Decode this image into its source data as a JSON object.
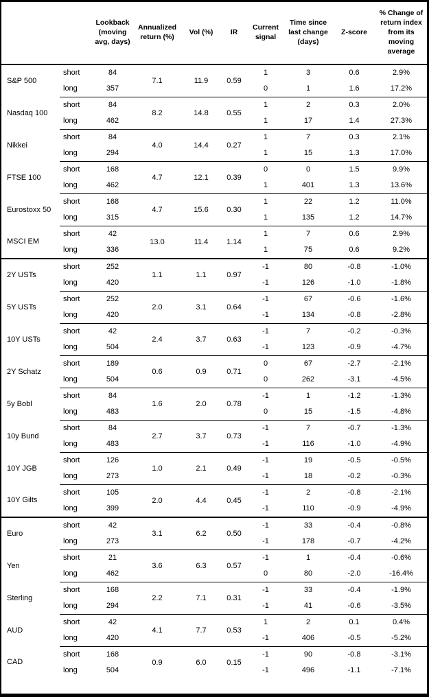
{
  "colors": {
    "border": "#000000",
    "text": "#000000",
    "background": "#ffffff"
  },
  "table": {
    "row_type_labels": {
      "short": "short",
      "long": "long"
    },
    "columns": [
      {
        "key": "instrument",
        "label": ""
      },
      {
        "key": "horizon",
        "label": ""
      },
      {
        "key": "lookback",
        "label": "Lookback (moving avg, days)"
      },
      {
        "key": "annualized",
        "label": "Annualized return (%)"
      },
      {
        "key": "vol",
        "label": "Vol (%)"
      },
      {
        "key": "ir",
        "label": "IR"
      },
      {
        "key": "signal",
        "label": "Current signal"
      },
      {
        "key": "time",
        "label": "Time since last change (days)"
      },
      {
        "key": "zscore",
        "label": "Z-score"
      },
      {
        "key": "pct_change",
        "label": "% Change of return index from its moving average"
      }
    ],
    "groups": [
      {
        "name": "S&P 500",
        "section_start": false,
        "lookback_short": "84",
        "lookback_long": "357",
        "annualized": "7.1",
        "vol": "11.9",
        "ir": "0.59",
        "signal_short": "1",
        "signal_long": "0",
        "time_short": "3",
        "time_long": "1",
        "zscore_short": "0.6",
        "zscore_long": "1.6",
        "pct_short": "2.9%",
        "pct_long": "17.2%"
      },
      {
        "name": "Nasdaq 100",
        "section_start": false,
        "lookback_short": "84",
        "lookback_long": "462",
        "annualized": "8.2",
        "vol": "14.8",
        "ir": "0.55",
        "signal_short": "1",
        "signal_long": "1",
        "time_short": "2",
        "time_long": "17",
        "zscore_short": "0.3",
        "zscore_long": "1.4",
        "pct_short": "2.0%",
        "pct_long": "27.3%"
      },
      {
        "name": "Nikkei",
        "section_start": false,
        "lookback_short": "84",
        "lookback_long": "294",
        "annualized": "4.0",
        "vol": "14.4",
        "ir": "0.27",
        "signal_short": "1",
        "signal_long": "1",
        "time_short": "7",
        "time_long": "15",
        "zscore_short": "0.3",
        "zscore_long": "1.3",
        "pct_short": "2.1%",
        "pct_long": "17.0%"
      },
      {
        "name": "FTSE 100",
        "section_start": false,
        "lookback_short": "168",
        "lookback_long": "462",
        "annualized": "4.7",
        "vol": "12.1",
        "ir": "0.39",
        "signal_short": "0",
        "signal_long": "1",
        "time_short": "0",
        "time_long": "401",
        "zscore_short": "1.5",
        "zscore_long": "1.3",
        "pct_short": "9.9%",
        "pct_long": "13.6%"
      },
      {
        "name": "Eurostoxx 50",
        "section_start": false,
        "lookback_short": "168",
        "lookback_long": "315",
        "annualized": "4.7",
        "vol": "15.6",
        "ir": "0.30",
        "signal_short": "1",
        "signal_long": "1",
        "time_short": "22",
        "time_long": "135",
        "zscore_short": "1.2",
        "zscore_long": "1.2",
        "pct_short": "11.0%",
        "pct_long": "14.7%"
      },
      {
        "name": "MSCI EM",
        "section_start": false,
        "lookback_short": "42",
        "lookback_long": "336",
        "annualized": "13.0",
        "vol": "11.4",
        "ir": "1.14",
        "signal_short": "1",
        "signal_long": "1",
        "time_short": "7",
        "time_long": "75",
        "zscore_short": "0.6",
        "zscore_long": "0.6",
        "pct_short": "2.9%",
        "pct_long": "9.2%"
      },
      {
        "name": "2Y USTs",
        "section_start": true,
        "lookback_short": "252",
        "lookback_long": "420",
        "annualized": "1.1",
        "vol": "1.1",
        "ir": "0.97",
        "signal_short": "-1",
        "signal_long": "-1",
        "time_short": "80",
        "time_long": "126",
        "zscore_short": "-0.8",
        "zscore_long": "-1.0",
        "pct_short": "-1.0%",
        "pct_long": "-1.8%"
      },
      {
        "name": "5Y USTs",
        "section_start": false,
        "lookback_short": "252",
        "lookback_long": "420",
        "annualized": "2.0",
        "vol": "3.1",
        "ir": "0.64",
        "signal_short": "-1",
        "signal_long": "-1",
        "time_short": "67",
        "time_long": "134",
        "zscore_short": "-0.6",
        "zscore_long": "-0.8",
        "pct_short": "-1.6%",
        "pct_long": "-2.8%"
      },
      {
        "name": "10Y USTs",
        "section_start": false,
        "lookback_short": "42",
        "lookback_long": "504",
        "annualized": "2.4",
        "vol": "3.7",
        "ir": "0.63",
        "signal_short": "-1",
        "signal_long": "-1",
        "time_short": "7",
        "time_long": "123",
        "zscore_short": "-0.2",
        "zscore_long": "-0.9",
        "pct_short": "-0.3%",
        "pct_long": "-4.7%"
      },
      {
        "name": "2Y Schatz",
        "section_start": false,
        "lookback_short": "189",
        "lookback_long": "504",
        "annualized": "0.6",
        "vol": "0.9",
        "ir": "0.71",
        "signal_short": "0",
        "signal_long": "0",
        "time_short": "67",
        "time_long": "262",
        "zscore_short": "-2.7",
        "zscore_long": "-3.1",
        "pct_short": "-2.1%",
        "pct_long": "-4.5%"
      },
      {
        "name": "5y Bobl",
        "section_start": false,
        "lookback_short": "84",
        "lookback_long": "483",
        "annualized": "1.6",
        "vol": "2.0",
        "ir": "0.78",
        "signal_short": "-1",
        "signal_long": "0",
        "time_short": "1",
        "time_long": "15",
        "zscore_short": "-1.2",
        "zscore_long": "-1.5",
        "pct_short": "-1.3%",
        "pct_long": "-4.8%"
      },
      {
        "name": "10y Bund",
        "section_start": false,
        "lookback_short": "84",
        "lookback_long": "483",
        "annualized": "2.7",
        "vol": "3.7",
        "ir": "0.73",
        "signal_short": "-1",
        "signal_long": "-1",
        "time_short": "7",
        "time_long": "116",
        "zscore_short": "-0.7",
        "zscore_long": "-1.0",
        "pct_short": "-1.3%",
        "pct_long": "-4.9%"
      },
      {
        "name": "10Y JGB",
        "section_start": false,
        "lookback_short": "126",
        "lookback_long": "273",
        "annualized": "1.0",
        "vol": "2.1",
        "ir": "0.49",
        "signal_short": "-1",
        "signal_long": "-1",
        "time_short": "19",
        "time_long": "18",
        "zscore_short": "-0.5",
        "zscore_long": "-0.2",
        "pct_short": "-0.5%",
        "pct_long": "-0.3%"
      },
      {
        "name": "10Y Gilts",
        "section_start": false,
        "lookback_short": "105",
        "lookback_long": "399",
        "annualized": "2.0",
        "vol": "4.4",
        "ir": "0.45",
        "signal_short": "-1",
        "signal_long": "-1",
        "time_short": "2",
        "time_long": "110",
        "zscore_short": "-0.8",
        "zscore_long": "-0.9",
        "pct_short": "-2.1%",
        "pct_long": "-4.9%"
      },
      {
        "name": "Euro",
        "section_start": true,
        "lookback_short": "42",
        "lookback_long": "273",
        "annualized": "3.1",
        "vol": "6.2",
        "ir": "0.50",
        "signal_short": "-1",
        "signal_long": "-1",
        "time_short": "33",
        "time_long": "178",
        "zscore_short": "-0.4",
        "zscore_long": "-0.7",
        "pct_short": "-0.8%",
        "pct_long": "-4.2%"
      },
      {
        "name": "Yen",
        "section_start": false,
        "lookback_short": "21",
        "lookback_long": "462",
        "annualized": "3.6",
        "vol": "6.3",
        "ir": "0.57",
        "signal_short": "-1",
        "signal_long": "0",
        "time_short": "1",
        "time_long": "80",
        "zscore_short": "-0.4",
        "zscore_long": "-2.0",
        "pct_short": "-0.6%",
        "pct_long": "-16.4%"
      },
      {
        "name": "Sterling",
        "section_start": false,
        "lookback_short": "168",
        "lookback_long": "294",
        "annualized": "2.2",
        "vol": "7.1",
        "ir": "0.31",
        "signal_short": "-1",
        "signal_long": "-1",
        "time_short": "33",
        "time_long": "41",
        "zscore_short": "-0.4",
        "zscore_long": "-0.6",
        "pct_short": "-1.9%",
        "pct_long": "-3.5%"
      },
      {
        "name": "AUD",
        "section_start": false,
        "lookback_short": "42",
        "lookback_long": "420",
        "annualized": "4.1",
        "vol": "7.7",
        "ir": "0.53",
        "signal_short": "1",
        "signal_long": "-1",
        "time_short": "2",
        "time_long": "406",
        "zscore_short": "0.1",
        "zscore_long": "-0.5",
        "pct_short": "0.4%",
        "pct_long": "-5.2%"
      },
      {
        "name": "CAD",
        "section_start": false,
        "lookback_short": "168",
        "lookback_long": "504",
        "annualized": "0.9",
        "vol": "6.0",
        "ir": "0.15",
        "signal_short": "-1",
        "signal_long": "-1",
        "time_short": "90",
        "time_long": "496",
        "zscore_short": "-0.8",
        "zscore_long": "-1.1",
        "pct_short": "-3.1%",
        "pct_long": "-7.1%"
      }
    ]
  }
}
